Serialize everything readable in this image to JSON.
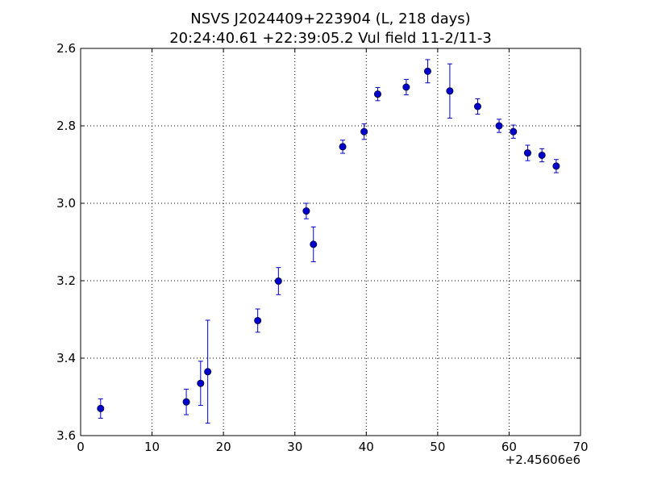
{
  "chart_data": {
    "type": "scatter",
    "title_line1": "NSVS J2024409+223904 (L, 218 days)",
    "title_line2": "20:24:40.61 +22:39:05.2 Vul field 11-2/11-3",
    "xlabel": "",
    "ylabel": "",
    "x_offset_label": "+2.45606e6",
    "xlim": [
      0,
      70
    ],
    "ylim": [
      3.6,
      2.6
    ],
    "y_inverted": true,
    "grid": true,
    "x_ticks": [
      0,
      10,
      20,
      30,
      40,
      50,
      60,
      70
    ],
    "x_tick_labels": [
      "0",
      "10",
      "20",
      "30",
      "40",
      "50",
      "60",
      "70"
    ],
    "y_ticks": [
      2.6,
      2.8,
      3.0,
      3.2,
      3.4,
      3.6
    ],
    "y_tick_labels": [
      "2.6",
      "2.8",
      "3.0",
      "3.2",
      "3.4",
      "3.6"
    ],
    "marker_color": "#0000cc",
    "points": [
      {
        "x": 2.8,
        "y": 3.53,
        "err": 0.025
      },
      {
        "x": 14.8,
        "y": 3.513,
        "err": 0.033
      },
      {
        "x": 16.8,
        "y": 3.465,
        "err": 0.057
      },
      {
        "x": 17.8,
        "y": 3.435,
        "err": 0.133
      },
      {
        "x": 24.8,
        "y": 3.303,
        "err": 0.03
      },
      {
        "x": 27.7,
        "y": 3.201,
        "err": 0.035
      },
      {
        "x": 31.6,
        "y": 3.02,
        "err": 0.02
      },
      {
        "x": 32.6,
        "y": 3.106,
        "err": 0.045
      },
      {
        "x": 36.7,
        "y": 2.854,
        "err": 0.017
      },
      {
        "x": 39.7,
        "y": 2.815,
        "err": 0.02
      },
      {
        "x": 41.6,
        "y": 2.718,
        "err": 0.017
      },
      {
        "x": 45.6,
        "y": 2.7,
        "err": 0.02
      },
      {
        "x": 48.6,
        "y": 2.659,
        "err": 0.03
      },
      {
        "x": 51.7,
        "y": 2.71,
        "err": 0.07
      },
      {
        "x": 55.6,
        "y": 2.75,
        "err": 0.02
      },
      {
        "x": 58.6,
        "y": 2.8,
        "err": 0.017
      },
      {
        "x": 60.6,
        "y": 2.815,
        "err": 0.017
      },
      {
        "x": 62.6,
        "y": 2.87,
        "err": 0.02
      },
      {
        "x": 64.6,
        "y": 2.876,
        "err": 0.017
      },
      {
        "x": 66.6,
        "y": 2.904,
        "err": 0.017
      }
    ]
  }
}
